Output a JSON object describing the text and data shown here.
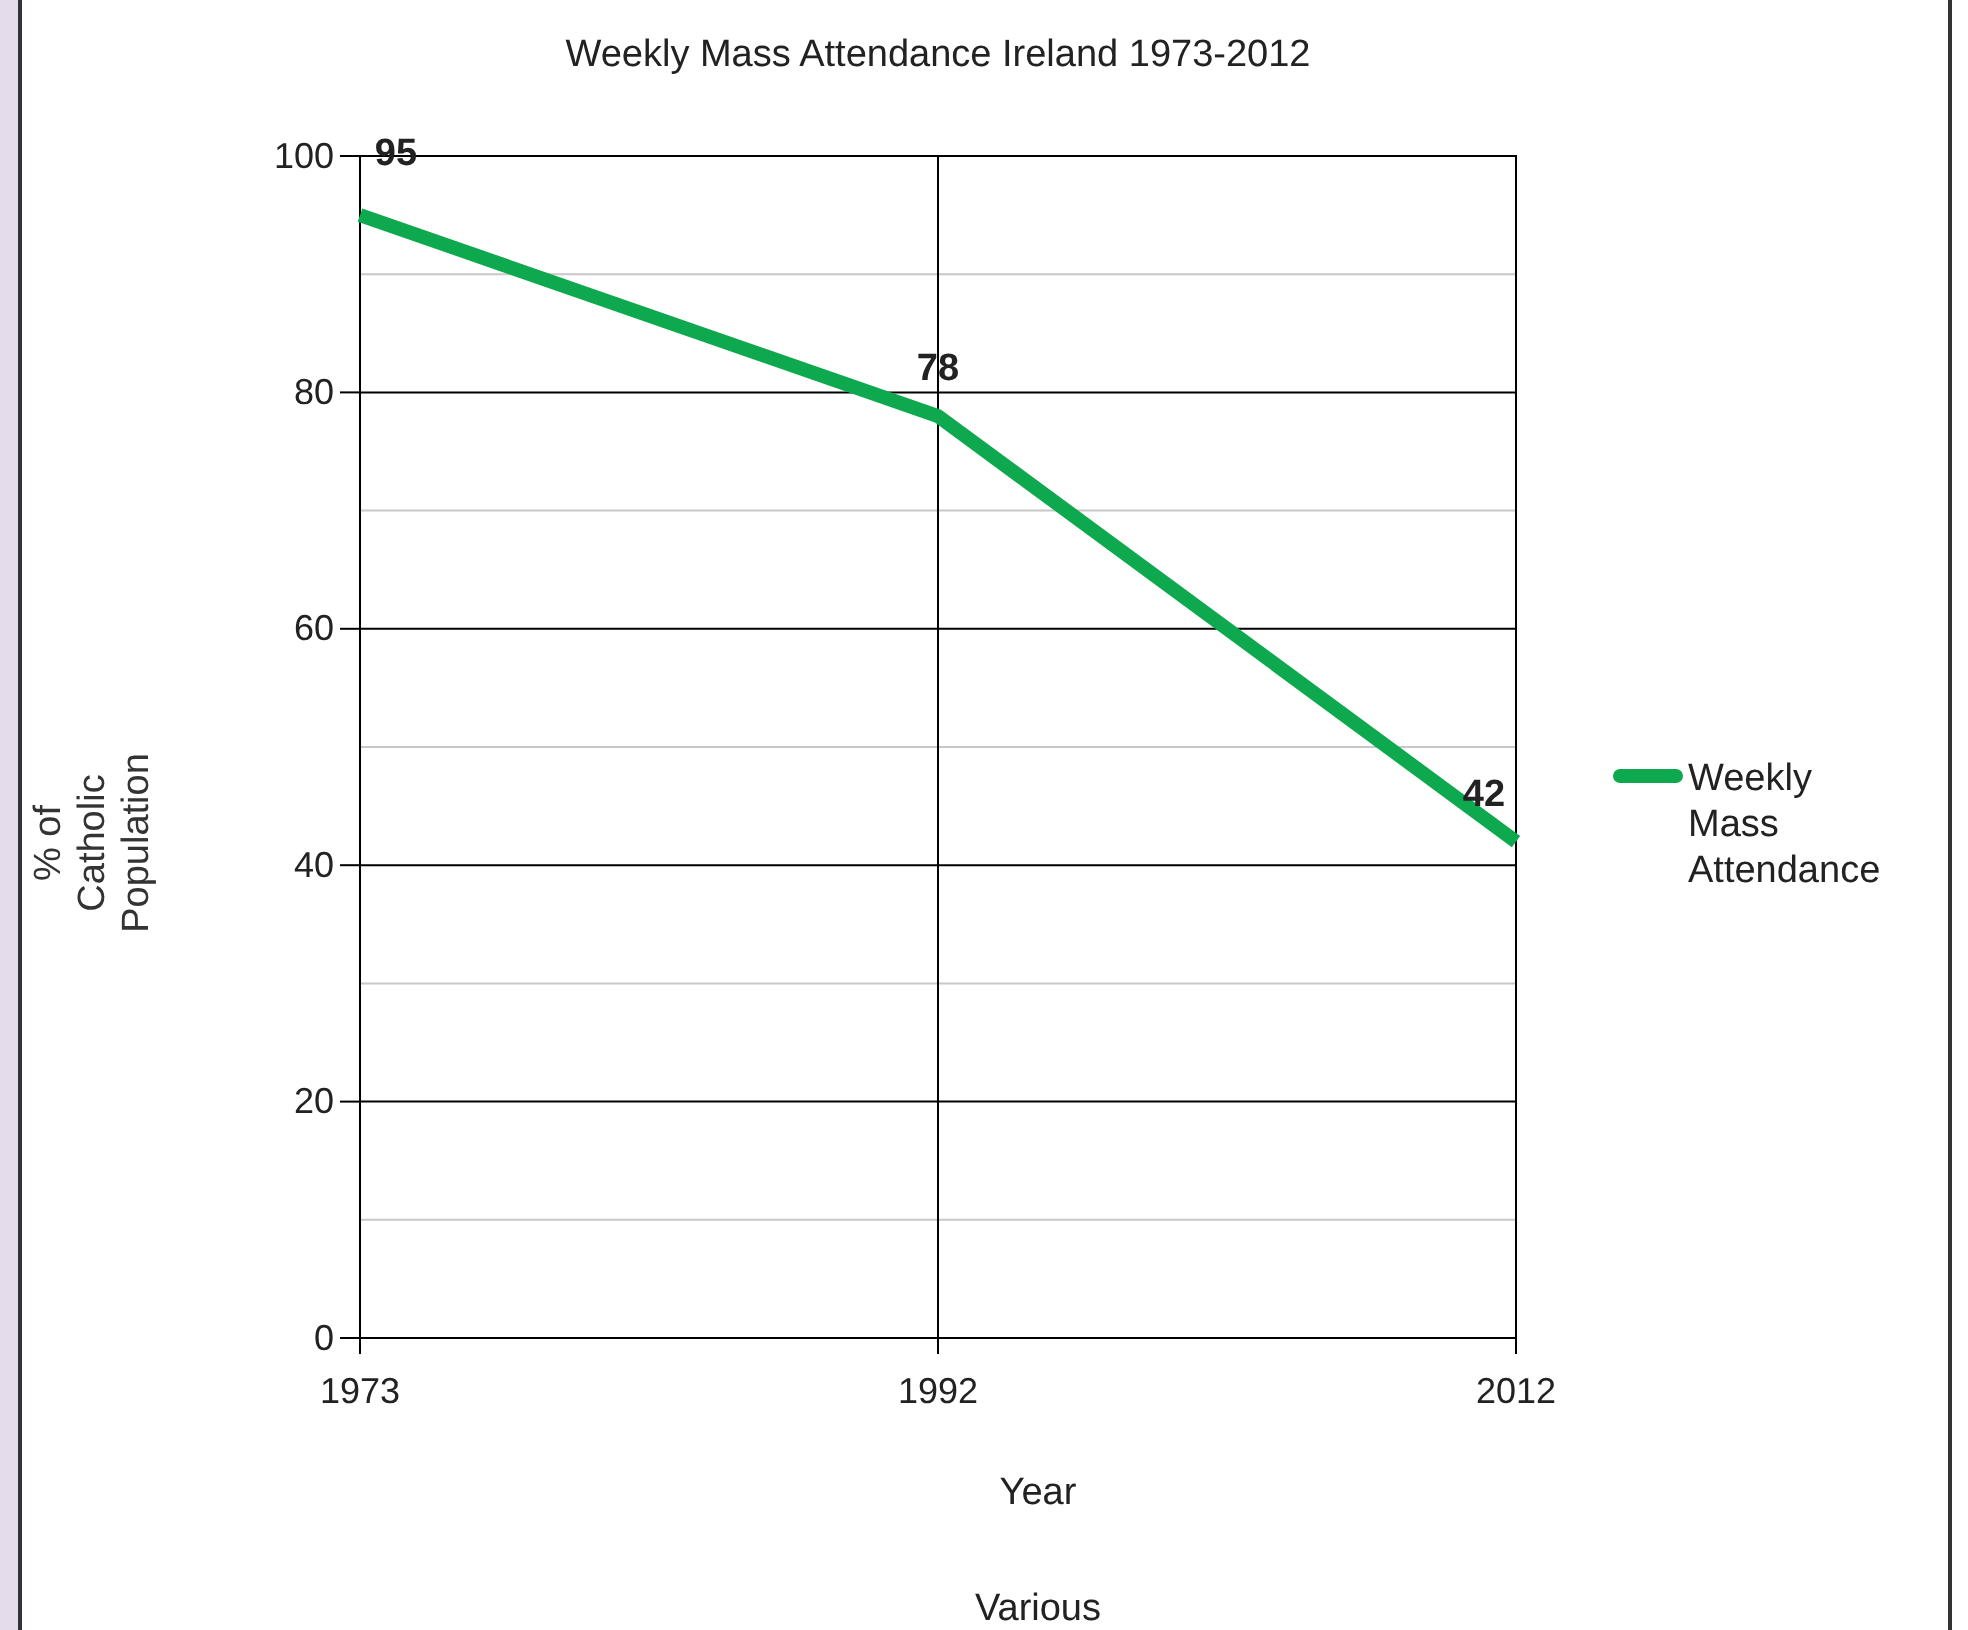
{
  "chart_data": {
    "type": "line",
    "title": "Weekly Mass Attendance Ireland 1973-2012",
    "xlabel": "Year",
    "ylabel": "% of Catholic Population",
    "categories": [
      "1973",
      "1992",
      "2012"
    ],
    "series": [
      {
        "name": "Weekly Mass Attendance",
        "color": "#0ea84e",
        "values": [
          95,
          78,
          42
        ]
      }
    ],
    "ylim": [
      0,
      100
    ],
    "yticks": [
      0,
      {
        "value": 10,
        "label": null
      },
      20,
      {
        "value": 30,
        "label": null
      },
      40,
      {
        "value": 50,
        "label": null
      },
      60,
      {
        "value": 70,
        "label": null
      },
      80,
      {
        "value": 90,
        "label": null
      },
      100
    ],
    "grid": true,
    "legend": "right",
    "marker": "none",
    "line_style": "solid",
    "data_labels": true,
    "annotations": [
      "Various"
    ]
  }
}
